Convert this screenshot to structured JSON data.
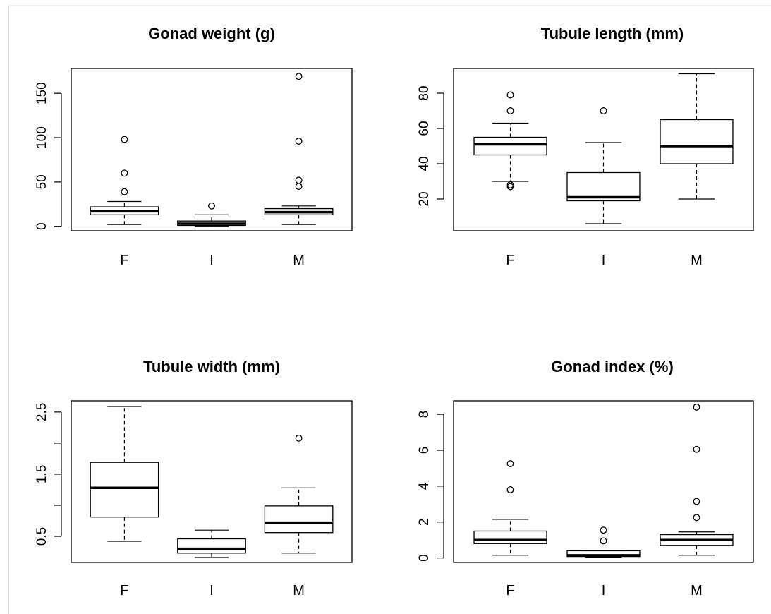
{
  "chart_data": [
    {
      "type": "box",
      "title": "Gonad weight (g)",
      "categories": [
        "F",
        "I",
        "M"
      ],
      "ylim": [
        -5,
        178
      ],
      "yticks": [
        0,
        50,
        100,
        150
      ],
      "ytick_labels": [
        "0",
        "50",
        "100",
        "150"
      ],
      "boxes": [
        {
          "category": "F",
          "whisker_low": 2,
          "q1": 13,
          "median": 17,
          "q3": 22,
          "whisker_high": 28,
          "outliers": [
            39,
            60,
            98
          ]
        },
        {
          "category": "I",
          "whisker_low": 0,
          "q1": 1,
          "median": 3,
          "q3": 6,
          "whisker_high": 13,
          "outliers": [
            23
          ]
        },
        {
          "category": "M",
          "whisker_low": 2,
          "q1": 13,
          "median": 16,
          "q3": 20,
          "whisker_high": 23,
          "outliers": [
            45,
            52,
            96,
            169
          ]
        }
      ]
    },
    {
      "type": "box",
      "title": "Tubule length (mm)",
      "categories": [
        "F",
        "I",
        "M"
      ],
      "ylim": [
        2,
        94
      ],
      "yticks": [
        20,
        40,
        60,
        80
      ],
      "ytick_labels": [
        "20",
        "40",
        "60",
        "80"
      ],
      "boxes": [
        {
          "category": "F",
          "whisker_low": 30,
          "q1": 45,
          "median": 51,
          "q3": 55,
          "whisker_high": 63,
          "outliers": [
            27,
            28,
            70,
            79
          ]
        },
        {
          "category": "I",
          "whisker_low": 6,
          "q1": 19,
          "median": 21,
          "q3": 35,
          "whisker_high": 52,
          "outliers": [
            70
          ]
        },
        {
          "category": "M",
          "whisker_low": 20,
          "q1": 40,
          "median": 50,
          "q3": 65,
          "whisker_high": 91,
          "outliers": []
        }
      ]
    },
    {
      "type": "box",
      "title": "Tubule width (mm)",
      "categories": [
        "F",
        "I",
        "M"
      ],
      "ylim": [
        0.08,
        2.68
      ],
      "yticks": [
        0.5,
        1.0,
        1.5,
        2.0,
        2.5
      ],
      "ytick_labels": [
        "0.5",
        "",
        "1.5",
        "",
        "2.5"
      ],
      "boxes": [
        {
          "category": "F",
          "whisker_low": 0.42,
          "q1": 0.81,
          "median": 1.28,
          "q3": 1.69,
          "whisker_high": 2.59,
          "outliers": []
        },
        {
          "category": "I",
          "whisker_low": 0.16,
          "q1": 0.23,
          "median": 0.3,
          "q3": 0.46,
          "whisker_high": 0.6,
          "outliers": []
        },
        {
          "category": "M",
          "whisker_low": 0.23,
          "q1": 0.56,
          "median": 0.72,
          "q3": 0.99,
          "whisker_high": 1.28,
          "outliers": [
            2.08
          ]
        }
      ]
    },
    {
      "type": "box",
      "title": "Gonad index (%)",
      "categories": [
        "F",
        "I",
        "M"
      ],
      "ylim": [
        -0.25,
        8.75
      ],
      "yticks": [
        0,
        2,
        4,
        6,
        8
      ],
      "ytick_labels": [
        "0",
        "2",
        "4",
        "6",
        "8"
      ],
      "boxes": [
        {
          "category": "F",
          "whisker_low": 0.15,
          "q1": 0.8,
          "median": 1.0,
          "q3": 1.5,
          "whisker_high": 2.15,
          "outliers": [
            3.8,
            5.25
          ]
        },
        {
          "category": "I",
          "whisker_low": 0.05,
          "q1": 0.08,
          "median": 0.15,
          "q3": 0.4,
          "whisker_high": 0.4,
          "outliers": [
            0.95,
            1.55
          ]
        },
        {
          "category": "M",
          "whisker_low": 0.15,
          "q1": 0.7,
          "median": 1.0,
          "q3": 1.3,
          "whisker_high": 1.45,
          "outliers": [
            2.25,
            3.15,
            6.05,
            8.4
          ]
        }
      ]
    }
  ]
}
